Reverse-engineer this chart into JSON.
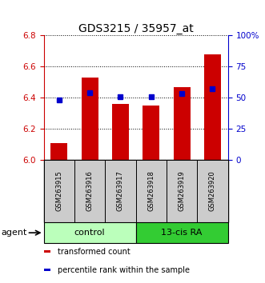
{
  "title": "GDS3215 / 35957_at",
  "samples": [
    "GSM263915",
    "GSM263916",
    "GSM263917",
    "GSM263918",
    "GSM263919",
    "GSM263920"
  ],
  "bar_values": [
    6.11,
    6.53,
    6.36,
    6.35,
    6.47,
    6.68
  ],
  "percentile_values": [
    48,
    54,
    51,
    51,
    53,
    57
  ],
  "bar_bottom": 6.0,
  "ylim": [
    6.0,
    6.8
  ],
  "y2lim": [
    0,
    100
  ],
  "yticks": [
    6.0,
    6.2,
    6.4,
    6.6,
    6.8
  ],
  "y2ticks": [
    0,
    25,
    50,
    75,
    100
  ],
  "y2ticklabels": [
    "0",
    "25",
    "50",
    "75",
    "100%"
  ],
  "bar_color": "#cc0000",
  "percentile_color": "#0000cc",
  "bar_width": 0.55,
  "groups": [
    {
      "label": "control",
      "indices": [
        0,
        1,
        2
      ],
      "color": "#bbffbb"
    },
    {
      "label": "13-cis RA",
      "indices": [
        3,
        4,
        5
      ],
      "color": "#33cc33"
    }
  ],
  "agent_label": "agent",
  "legend_items": [
    {
      "color": "#cc0000",
      "label": "transformed count"
    },
    {
      "color": "#0000cc",
      "label": "percentile rank within the sample"
    }
  ],
  "title_fontsize": 10,
  "axis_label_color_left": "#cc0000",
  "axis_label_color_right": "#0000cc",
  "sample_box_color": "#cccccc",
  "fig_width": 3.31,
  "fig_height": 3.54,
  "dpi": 100
}
